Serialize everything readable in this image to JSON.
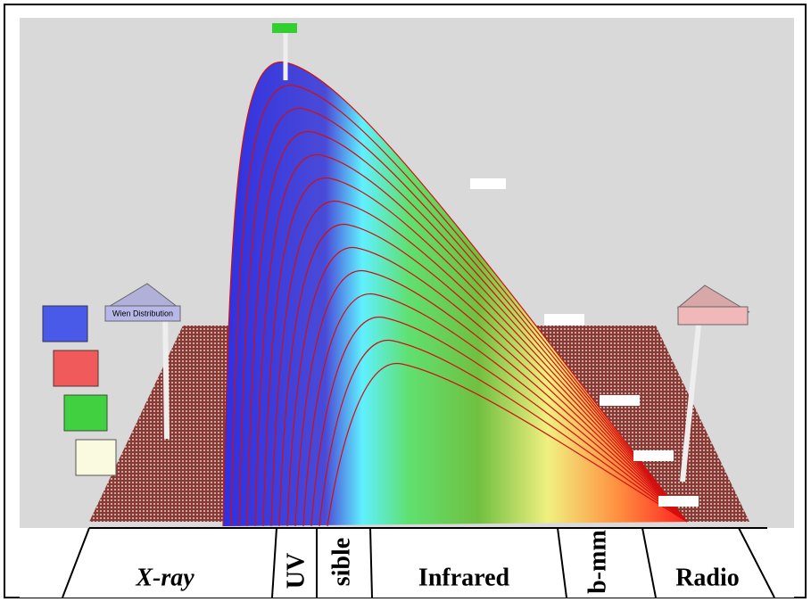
{
  "bands": [
    "X-ray",
    "UV",
    "sible",
    "Infrared",
    "b-mm",
    "Radio"
  ],
  "signs": {
    "left": "Wien Distribution"
  }
}
